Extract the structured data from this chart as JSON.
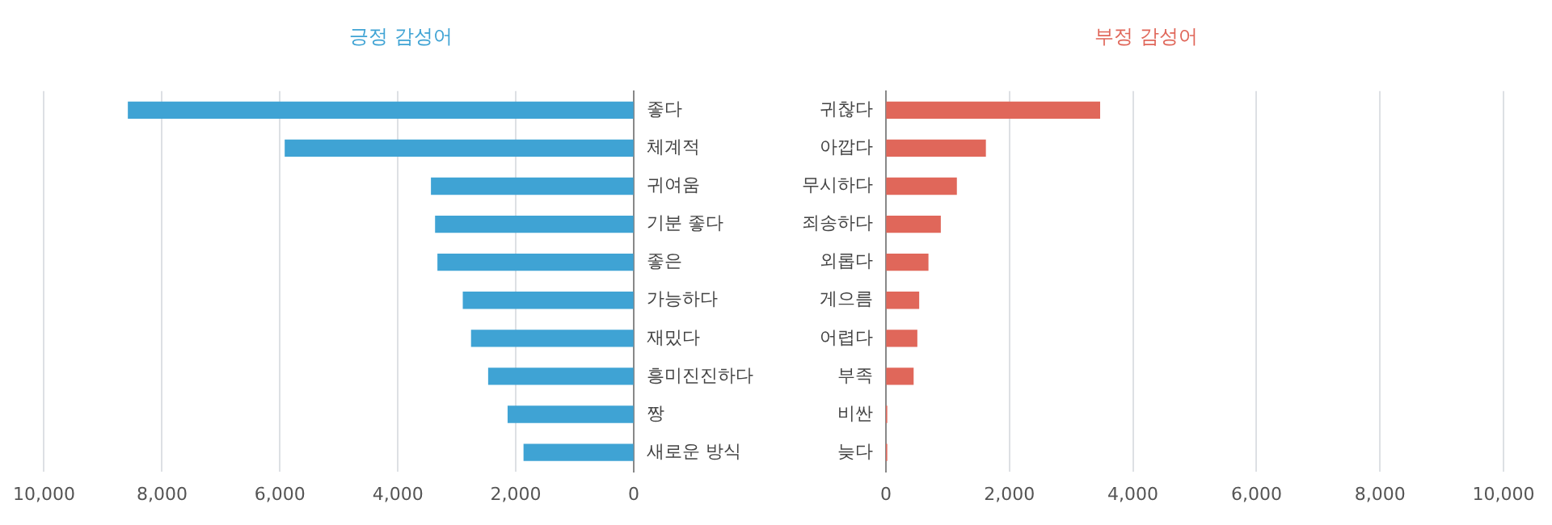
{
  "chart_data": [
    {
      "type": "bar",
      "orientation": "horizontal",
      "title": "긍정 감성어",
      "categories": [
        "좋다",
        "체계적",
        "귀여움",
        "기분 좋다",
        "좋은",
        "가능하다",
        "재밌다",
        "흥미진진하다",
        "짱",
        "새로운 방식"
      ],
      "series": [
        {
          "color": "#3fa3d4",
          "values": [
            8570,
            5910,
            3430,
            3360,
            3320,
            2890,
            2750,
            2460,
            2130,
            1860
          ]
        }
      ],
      "xlim": [
        10000,
        0
      ],
      "xticks": [
        {
          "value": 10000,
          "label": "10,000"
        },
        {
          "value": 8000,
          "label": "8,000"
        },
        {
          "value": 6000,
          "label": "6,000"
        },
        {
          "value": 4000,
          "label": "4,000"
        },
        {
          "value": 2000,
          "label": "2,000"
        },
        0
      ],
      "grid": "x",
      "legend": false
    },
    {
      "type": "bar",
      "orientation": "horizontal",
      "title": "부정 감성어",
      "categories": [
        "귀찮다",
        "아깝다",
        "무시하다",
        "죄송하다",
        "외롭다",
        "게으름",
        "어렵다",
        "부족",
        "비싼",
        "늦다"
      ],
      "series": [
        {
          "color": "#e0675a",
          "values": [
            3460,
            1610,
            1140,
            880,
            680,
            530,
            500,
            440,
            10,
            10
          ]
        }
      ],
      "xlim": [
        0,
        10000
      ],
      "xticks": [
        0,
        {
          "value": 2000,
          "label": "2,000"
        },
        {
          "value": 4000,
          "label": "4,000"
        },
        {
          "value": 6000,
          "label": "6,000"
        },
        {
          "value": 8000,
          "label": "8,000"
        },
        {
          "value": 10000,
          "label": "10,000"
        }
      ],
      "grid": "x",
      "legend": false
    }
  ]
}
